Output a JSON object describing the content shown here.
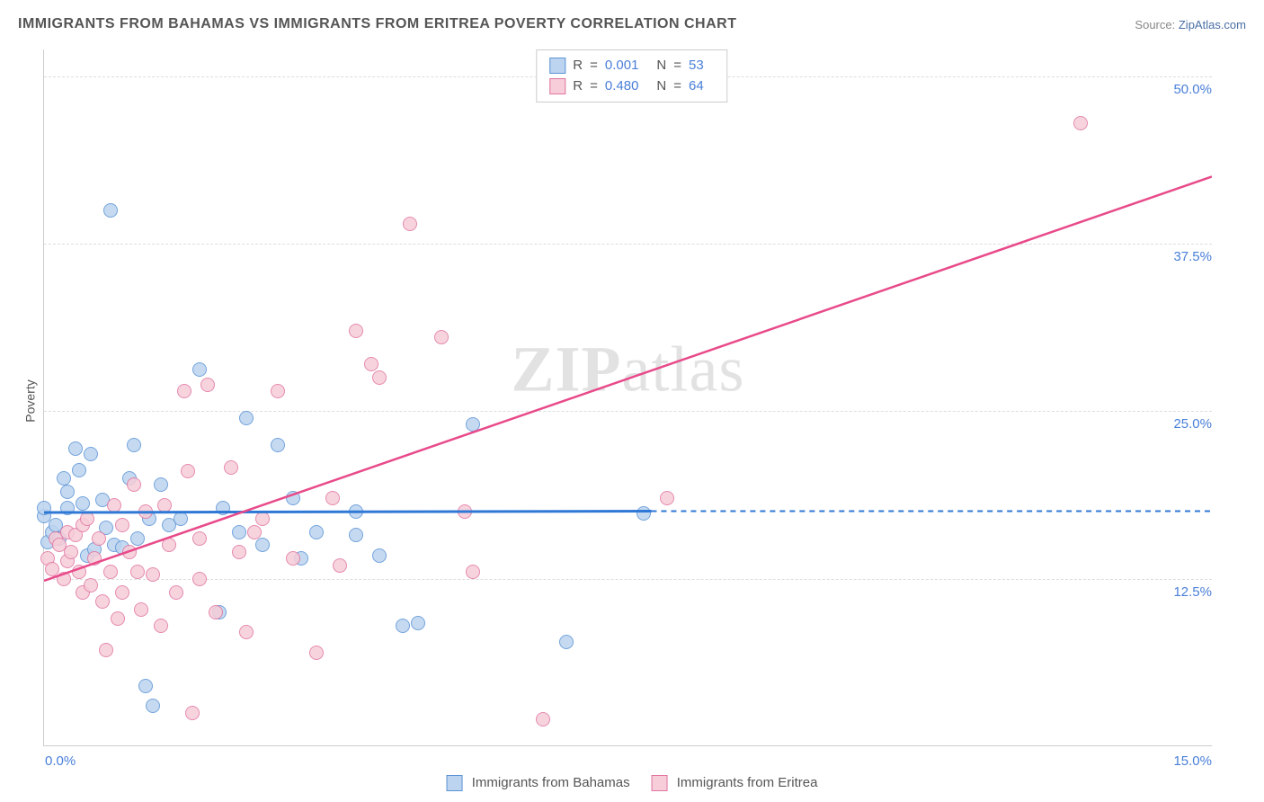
{
  "title": "IMMIGRANTS FROM BAHAMAS VS IMMIGRANTS FROM ERITREA POVERTY CORRELATION CHART",
  "source_label": "Source:",
  "source_link": "ZipAtlas.com",
  "ylabel": "Poverty",
  "watermark": "ZIPatlas",
  "chart": {
    "type": "scatter",
    "xlim": [
      0.0,
      15.0
    ],
    "ylim": [
      0.0,
      52.0
    ],
    "xtick_labels": [
      "0.0%",
      "15.0%"
    ],
    "ytick_positions": [
      12.5,
      25.0,
      37.5,
      50.0
    ],
    "ytick_labels": [
      "12.5%",
      "25.0%",
      "37.5%",
      "50.0%"
    ],
    "grid_color": "#dddddd",
    "axis_color": "#cccccc",
    "background_color": "#ffffff",
    "marker_radius": 8,
    "marker_border_width": 1.5,
    "series": [
      {
        "name": "Immigrants from Bahamas",
        "fill": "#bcd4ef",
        "stroke": "#5b93d6",
        "line_color": "#2f78d6",
        "R": "0.001",
        "N": "53",
        "regression": {
          "x1": 0.0,
          "y1": 17.4,
          "x2": 7.8,
          "y2": 17.5,
          "dashed_to_x": 15.0
        },
        "points": [
          [
            0.0,
            17.2
          ],
          [
            0.0,
            17.8
          ],
          [
            0.05,
            15.2
          ],
          [
            0.1,
            16.0
          ],
          [
            0.15,
            16.5
          ],
          [
            0.2,
            15.5
          ],
          [
            0.25,
            20.0
          ],
          [
            0.3,
            19.0
          ],
          [
            0.3,
            17.8
          ],
          [
            0.4,
            22.2
          ],
          [
            0.45,
            20.6
          ],
          [
            0.5,
            18.1
          ],
          [
            0.55,
            14.2
          ],
          [
            0.6,
            21.8
          ],
          [
            0.65,
            14.7
          ],
          [
            0.75,
            18.4
          ],
          [
            0.8,
            16.3
          ],
          [
            0.85,
            40.0
          ],
          [
            0.9,
            15.0
          ],
          [
            1.0,
            14.8
          ],
          [
            1.1,
            20.0
          ],
          [
            1.15,
            22.5
          ],
          [
            1.2,
            15.5
          ],
          [
            1.3,
            4.5
          ],
          [
            1.35,
            17.0
          ],
          [
            1.4,
            3.0
          ],
          [
            1.5,
            19.5
          ],
          [
            1.6,
            16.5
          ],
          [
            1.75,
            17.0
          ],
          [
            2.0,
            28.1
          ],
          [
            2.25,
            10.0
          ],
          [
            2.3,
            17.8
          ],
          [
            2.5,
            16.0
          ],
          [
            2.6,
            24.5
          ],
          [
            2.8,
            15.0
          ],
          [
            3.0,
            22.5
          ],
          [
            3.2,
            18.5
          ],
          [
            3.3,
            14.0
          ],
          [
            3.5,
            16.0
          ],
          [
            4.0,
            15.8
          ],
          [
            4.0,
            17.5
          ],
          [
            4.3,
            14.2
          ],
          [
            4.6,
            9.0
          ],
          [
            4.8,
            9.2
          ],
          [
            5.5,
            24.0
          ],
          [
            6.7,
            7.8
          ],
          [
            7.7,
            17.4
          ]
        ]
      },
      {
        "name": "Immigrants from Eritrea",
        "fill": "#f6cdd8",
        "stroke": "#e175a0",
        "line_color": "#e84a8a",
        "R": "0.480",
        "N": "64",
        "regression": {
          "x1": 0.0,
          "y1": 12.3,
          "x2": 15.0,
          "y2": 42.5,
          "dashed_to_x": null
        },
        "points": [
          [
            0.05,
            14.0
          ],
          [
            0.1,
            13.2
          ],
          [
            0.15,
            15.5
          ],
          [
            0.2,
            15.0
          ],
          [
            0.25,
            12.5
          ],
          [
            0.3,
            16.0
          ],
          [
            0.3,
            13.8
          ],
          [
            0.35,
            14.5
          ],
          [
            0.4,
            15.8
          ],
          [
            0.45,
            13.0
          ],
          [
            0.5,
            16.5
          ],
          [
            0.5,
            11.5
          ],
          [
            0.55,
            17.0
          ],
          [
            0.6,
            12.0
          ],
          [
            0.65,
            14.0
          ],
          [
            0.7,
            15.5
          ],
          [
            0.75,
            10.8
          ],
          [
            0.8,
            7.2
          ],
          [
            0.85,
            13.0
          ],
          [
            0.9,
            18.0
          ],
          [
            0.95,
            9.5
          ],
          [
            1.0,
            16.5
          ],
          [
            1.0,
            11.5
          ],
          [
            1.1,
            14.5
          ],
          [
            1.15,
            19.5
          ],
          [
            1.2,
            13.0
          ],
          [
            1.25,
            10.2
          ],
          [
            1.3,
            17.5
          ],
          [
            1.4,
            12.8
          ],
          [
            1.5,
            9.0
          ],
          [
            1.55,
            18.0
          ],
          [
            1.6,
            15.0
          ],
          [
            1.7,
            11.5
          ],
          [
            1.8,
            26.5
          ],
          [
            1.85,
            20.5
          ],
          [
            1.9,
            2.5
          ],
          [
            2.0,
            15.5
          ],
          [
            2.0,
            12.5
          ],
          [
            2.1,
            27.0
          ],
          [
            2.2,
            10.0
          ],
          [
            2.4,
            20.8
          ],
          [
            2.5,
            14.5
          ],
          [
            2.6,
            8.5
          ],
          [
            2.7,
            16.0
          ],
          [
            2.8,
            17.0
          ],
          [
            3.0,
            26.5
          ],
          [
            3.2,
            14.0
          ],
          [
            3.5,
            7.0
          ],
          [
            3.7,
            18.5
          ],
          [
            3.8,
            13.5
          ],
          [
            4.0,
            31.0
          ],
          [
            4.2,
            28.5
          ],
          [
            4.3,
            27.5
          ],
          [
            4.7,
            39.0
          ],
          [
            5.1,
            30.5
          ],
          [
            5.4,
            17.5
          ],
          [
            5.5,
            13.0
          ],
          [
            6.4,
            2.0
          ],
          [
            8.0,
            18.5
          ],
          [
            13.3,
            46.5
          ]
        ]
      }
    ]
  },
  "legend_top": {
    "R_label": "R",
    "N_label": "N",
    "eq": "="
  },
  "legend_bottom": {
    "items": [
      {
        "label": "Immigrants from Bahamas",
        "fill": "#bcd4ef",
        "stroke": "#5b93d6"
      },
      {
        "label": "Immigrants from Eritrea",
        "fill": "#f6cdd8",
        "stroke": "#e175a0"
      }
    ]
  }
}
